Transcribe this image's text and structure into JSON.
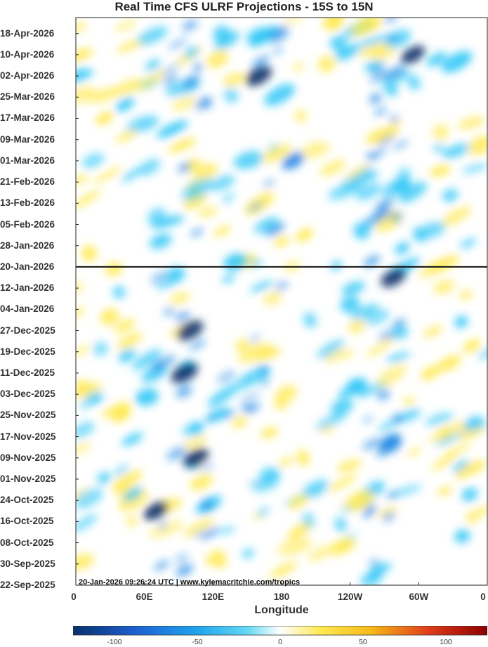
{
  "chart_data": {
    "type": "heatmap",
    "title": "Real Time CFS ULRF Projections - 15S to 15N",
    "xlabel": "Longitude",
    "ylabel": "",
    "x_ticks": [
      "0",
      "60E",
      "120E",
      "180",
      "120W",
      "60W",
      "0"
    ],
    "x_tick_values": [
      0,
      60,
      120,
      180,
      240,
      300,
      360
    ],
    "xlim": [
      0,
      360
    ],
    "y_ticks": [
      "18-Apr-2026",
      "10-Apr-2026",
      "02-Apr-2026",
      "25-Mar-2026",
      "17-Mar-2026",
      "09-Mar-2026",
      "01-Mar-2026",
      "21-Feb-2026",
      "13-Feb-2026",
      "05-Feb-2026",
      "28-Jan-2026",
      "20-Jan-2026",
      "12-Jan-2026",
      "04-Jan-2026",
      "27-Dec-2025",
      "19-Dec-2025",
      "11-Dec-2025",
      "03-Dec-2025",
      "25-Nov-2025",
      "17-Nov-2025",
      "09-Nov-2025",
      "01-Nov-2025",
      "24-Oct-2025",
      "16-Oct-2025",
      "08-Oct-2025",
      "30-Sep-2025",
      "22-Sep-2025"
    ],
    "ylim": [
      "22-Sep-2025",
      "24-Apr-2026"
    ],
    "reference_line": "20-Jan-2026",
    "colorbar": {
      "ticks": [
        -100,
        -50,
        0,
        50,
        100
      ],
      "range": [
        -125,
        125
      ]
    },
    "colors": {
      "strong_negative": "#08306b",
      "negative": "#1e88e5",
      "weak_negative": "#29c5f6",
      "neutral": "#ffffff",
      "positive": "#ffe94d",
      "strong_positive": "#8b0000"
    },
    "features": [
      {
        "lon": 100,
        "date": "27-Dec-2025",
        "value": -85
      },
      {
        "lon": 95,
        "date": "11-Dec-2025",
        "value": -90
      },
      {
        "lon": 105,
        "date": "09-Nov-2025",
        "value": -80
      },
      {
        "lon": 70,
        "date": "20-Oct-2025",
        "value": -75
      },
      {
        "lon": 160,
        "date": "02-Apr-2026",
        "value": -85
      },
      {
        "lon": 295,
        "date": "10-Apr-2026",
        "value": -70
      },
      {
        "lon": 278,
        "date": "16-Jan-2026",
        "value": -80
      },
      {
        "lon": 275,
        "date": "15-Nov-2025",
        "value": -60
      },
      {
        "lon": 190,
        "date": "01-Mar-2026",
        "value": -60
      },
      {
        "lon": 40,
        "date": "25-Nov-2025",
        "value": 35
      },
      {
        "lon": 310,
        "date": "11-Dec-2025",
        "value": 35
      },
      {
        "lon": 25,
        "date": "17-Mar-2026",
        "value": 30
      },
      {
        "lon": 200,
        "date": "01-Feb-2026",
        "value": 30
      }
    ]
  },
  "footer": "20-Jan-2026 09:26:24 UTC | www.kylemacritchie.com/tropics"
}
